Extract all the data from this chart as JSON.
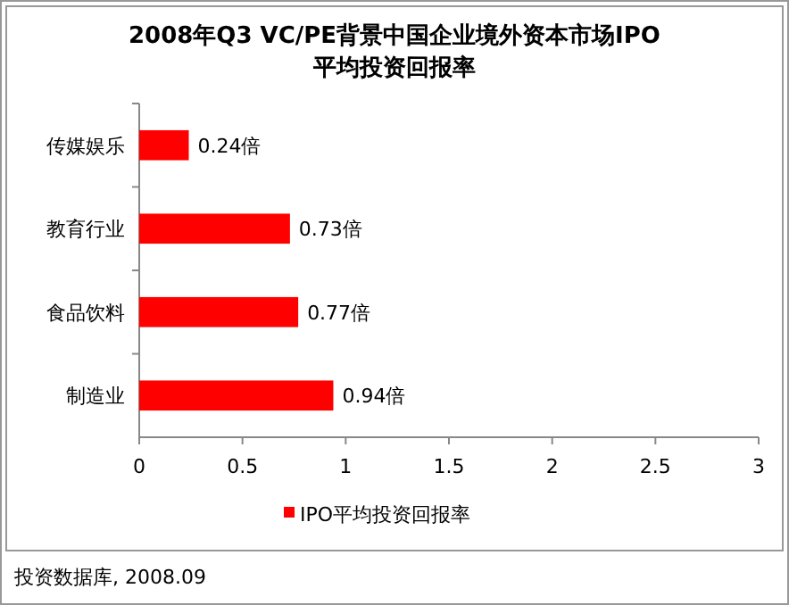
{
  "chart_data": {
    "type": "bar",
    "orientation": "horizontal",
    "title": "2008年Q3 VC/PE背景中国企业境外资本市场IPO\n平均投资回报率",
    "categories": [
      "传媒娱乐",
      "教育行业",
      "食品饮料",
      "制造业"
    ],
    "series": [
      {
        "name": "IPO平均投资回报率",
        "color": "#ff0000",
        "values": [
          0.24,
          0.73,
          0.77,
          0.94
        ],
        "value_labels": [
          "0.24倍",
          "0.73倍",
          "0.77倍",
          "0.94倍"
        ]
      }
    ],
    "xlim": [
      0,
      3
    ],
    "xticks": [
      0,
      0.5,
      1,
      1.5,
      2,
      2.5,
      3
    ],
    "legend": "bottom",
    "annotations": [
      "投资数据库, 2008.09"
    ]
  }
}
